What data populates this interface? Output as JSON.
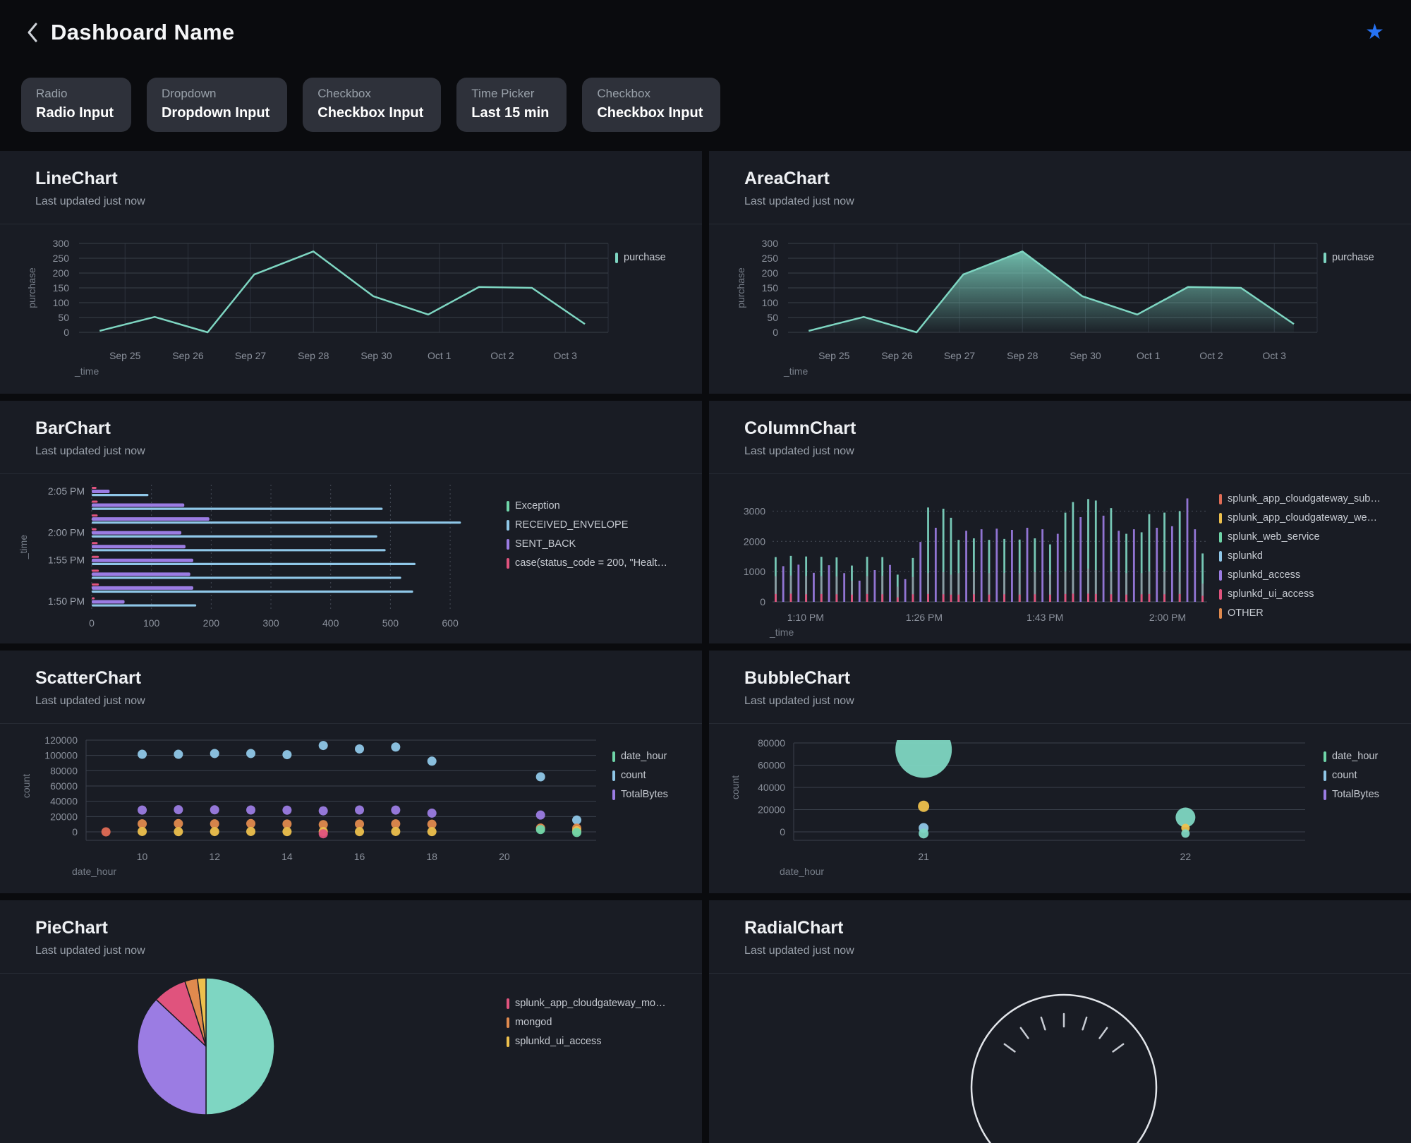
{
  "header": {
    "back_icon": "chevron-left",
    "title": "Dashboard Name",
    "star_icon": "star"
  },
  "inputs": [
    {
      "label": "Radio",
      "value": "Radio Input"
    },
    {
      "label": "Dropdown",
      "value": "Dropdown Input"
    },
    {
      "label": "Checkbox",
      "value": "Checkbox Input"
    },
    {
      "label": "Time Picker",
      "value": "Last 15 min"
    },
    {
      "label": "Checkbox",
      "value": "Checkbox Input"
    }
  ],
  "colors": {
    "teal": "#7ED6C2",
    "blue": "#8FC7E8",
    "purple": "#9B7CE3",
    "pink": "#E0537D",
    "orange": "#E08A4E",
    "redorange": "#E06C55",
    "yellow": "#EDC04D",
    "green": "#6FD5A8",
    "gray": "#8E94A0",
    "gauge": "#E2E5EA",
    "accent_star": "#2673F5"
  },
  "panels": [
    {
      "title": "LineChart",
      "subtitle": "Last updated just now"
    },
    {
      "title": "AreaChart",
      "subtitle": "Last updated just now"
    },
    {
      "title": "BarChart",
      "subtitle": "Last updated just now"
    },
    {
      "title": "ColumnChart",
      "subtitle": "Last updated just now"
    },
    {
      "title": "ScatterChart",
      "subtitle": "Last updated just now"
    },
    {
      "title": "BubbleChart",
      "subtitle": "Last updated just now"
    },
    {
      "title": "PieChart",
      "subtitle": "Last updated just now"
    },
    {
      "title": "RadialChart",
      "subtitle": "Last updated just now"
    }
  ],
  "chart_data": [
    {
      "id": "line",
      "type": "line",
      "title": "LineChart",
      "xlabel": "_time",
      "ylabel": "purchase",
      "ylim": [
        0,
        300
      ],
      "yticks": [
        0,
        50,
        100,
        150,
        200,
        250,
        300
      ],
      "xticks": [
        {
          "label": "Sep 25",
          "pos": 8.7
        },
        {
          "label": "Sep 26",
          "pos": 20.6
        },
        {
          "label": "Sep 27",
          "pos": 32.4
        },
        {
          "label": "Sep 28",
          "pos": 44.3
        },
        {
          "label": "Sep 30",
          "pos": 56.2
        },
        {
          "label": "Oct 1",
          "pos": 68.1
        },
        {
          "label": "Oct 2",
          "pos": 80
        },
        {
          "label": "Oct 3",
          "pos": 91.9
        }
      ],
      "points": [
        [
          3.9,
          5
        ],
        [
          14.3,
          52
        ],
        [
          24.3,
          0
        ],
        [
          33.1,
          195
        ],
        [
          44.3,
          273
        ],
        [
          55.6,
          122
        ],
        [
          66,
          60
        ],
        [
          75.6,
          153
        ],
        [
          85.6,
          150
        ],
        [
          95.6,
          28
        ]
      ],
      "series_color": "teal",
      "legend": [
        {
          "label": "purchase",
          "color": "teal"
        }
      ]
    },
    {
      "id": "area",
      "type": "area",
      "title": "AreaChart",
      "xlabel": "_time",
      "ylabel": "purchase",
      "ylim": [
        0,
        300
      ],
      "yticks": [
        0,
        50,
        100,
        150,
        200,
        250,
        300
      ],
      "xticks": [
        {
          "label": "Sep 25",
          "pos": 8.7
        },
        {
          "label": "Sep 26",
          "pos": 20.6
        },
        {
          "label": "Sep 27",
          "pos": 32.4
        },
        {
          "label": "Sep 28",
          "pos": 44.3
        },
        {
          "label": "Sep 30",
          "pos": 56.2
        },
        {
          "label": "Oct 1",
          "pos": 68.1
        },
        {
          "label": "Oct 2",
          "pos": 80
        },
        {
          "label": "Oct 3",
          "pos": 91.9
        }
      ],
      "points": [
        [
          3.9,
          5
        ],
        [
          14.3,
          52
        ],
        [
          24.3,
          0
        ],
        [
          33.1,
          195
        ],
        [
          44.3,
          273
        ],
        [
          55.6,
          122
        ],
        [
          66,
          60
        ],
        [
          75.6,
          153
        ],
        [
          85.6,
          150
        ],
        [
          95.6,
          28
        ]
      ],
      "series_color": "teal",
      "legend": [
        {
          "label": "purchase",
          "color": "teal"
        }
      ]
    },
    {
      "id": "bar",
      "type": "bar",
      "title": "BarChart",
      "ylabel": "_time",
      "xlim": [
        0,
        620
      ],
      "xticks": [
        0,
        100,
        200,
        300,
        400,
        500,
        600
      ],
      "groups": [
        {
          "label": "2:05 PM",
          "case": 8,
          "sent_back": 30,
          "received": 95
        },
        {
          "label": "",
          "case": 10,
          "sent_back": 155,
          "received": 487
        },
        {
          "label": "",
          "case": 10,
          "sent_back": 197,
          "received": 618
        },
        {
          "label": "2:00 PM",
          "case": 8,
          "sent_back": 150,
          "received": 478
        },
        {
          "label": "",
          "case": 10,
          "sent_back": 157,
          "received": 492
        },
        {
          "label": "1:55 PM",
          "case": 12,
          "sent_back": 170,
          "received": 542
        },
        {
          "label": "",
          "case": 12,
          "sent_back": 165,
          "received": 518
        },
        {
          "label": "",
          "case": 12,
          "sent_back": 170,
          "received": 538
        },
        {
          "label": "1:50 PM",
          "case": 5,
          "sent_back": 55,
          "received": 175
        }
      ],
      "legend": [
        {
          "label": "Exception",
          "color": "green"
        },
        {
          "label": "RECEIVED_ENVELOPE",
          "color": "blue"
        },
        {
          "label": "SENT_BACK",
          "color": "purple"
        },
        {
          "label": "case(status_code = 200, \"Healt…",
          "color": "pink"
        }
      ]
    },
    {
      "id": "column",
      "type": "column",
      "title": "ColumnChart",
      "xlabel": "_time",
      "ylim": [
        0,
        3500
      ],
      "yticks": [
        0,
        1000,
        2000,
        3000
      ],
      "xticks": [
        {
          "label": "1:10 PM",
          "pos": 7.6
        },
        {
          "label": "1:26 PM",
          "pos": 34.9
        },
        {
          "label": "1:43 PM",
          "pos": 62.7
        },
        {
          "label": "2:00 PM",
          "pos": 90.9
        }
      ],
      "columns": [
        [
          1480,
          0,
          850,
          260
        ],
        [
          1180,
          1,
          0,
          0
        ],
        [
          1520,
          0,
          870,
          270
        ],
        [
          1230,
          1,
          0,
          0
        ],
        [
          1500,
          0,
          860,
          250
        ],
        [
          960,
          1,
          0,
          0
        ],
        [
          1490,
          0,
          850,
          260
        ],
        [
          1210,
          1,
          0,
          0
        ],
        [
          1470,
          0,
          840,
          250
        ],
        [
          950,
          1,
          0,
          0
        ],
        [
          1200,
          0,
          700,
          240
        ],
        [
          700,
          1,
          0,
          0
        ],
        [
          1490,
          0,
          850,
          260
        ],
        [
          1050,
          1,
          0,
          0
        ],
        [
          1480,
          0,
          860,
          250
        ],
        [
          1220,
          1,
          0,
          0
        ],
        [
          900,
          0,
          500,
          150
        ],
        [
          750,
          1,
          0,
          0
        ],
        [
          1450,
          0,
          820,
          250
        ],
        [
          1980,
          1,
          0,
          0
        ],
        [
          3120,
          0,
          950,
          260
        ],
        [
          2450,
          1,
          0,
          0
        ],
        [
          3080,
          0,
          980,
          250
        ],
        [
          2780,
          0,
          900,
          240
        ],
        [
          2050,
          0,
          950,
          240
        ],
        [
          2350,
          1,
          0,
          0
        ],
        [
          2100,
          0,
          980,
          250
        ],
        [
          2400,
          1,
          0,
          0
        ],
        [
          2050,
          0,
          950,
          240
        ],
        [
          2420,
          1,
          0,
          0
        ],
        [
          2080,
          0,
          960,
          250
        ],
        [
          2380,
          1,
          0,
          0
        ],
        [
          2060,
          0,
          950,
          240
        ],
        [
          2450,
          1,
          0,
          0
        ],
        [
          2100,
          0,
          980,
          250
        ],
        [
          2400,
          1,
          0,
          0
        ],
        [
          1900,
          0,
          900,
          240
        ],
        [
          2250,
          1,
          0,
          0
        ],
        [
          2950,
          0,
          1000,
          260
        ],
        [
          3300,
          0,
          1050,
          270
        ],
        [
          2800,
          1,
          0,
          0
        ],
        [
          3400,
          0,
          1100,
          270
        ],
        [
          3350,
          0,
          1050,
          260
        ],
        [
          2850,
          1,
          0,
          0
        ],
        [
          3100,
          0,
          1000,
          250
        ],
        [
          2350,
          1,
          0,
          0
        ],
        [
          2250,
          0,
          950,
          240
        ],
        [
          2400,
          1,
          0,
          0
        ],
        [
          2300,
          0,
          950,
          250
        ],
        [
          2900,
          0,
          1000,
          260
        ],
        [
          2450,
          1,
          0,
          0
        ],
        [
          2950,
          0,
          1000,
          250
        ],
        [
          2500,
          1,
          0,
          0
        ],
        [
          3000,
          0,
          980,
          260
        ],
        [
          3420,
          1,
          0,
          0
        ],
        [
          2400,
          1,
          0,
          0
        ],
        [
          1600,
          0,
          600,
          200
        ]
      ],
      "column_series_colors": [
        "teal",
        "purple"
      ],
      "legend": [
        {
          "label": "splunk_app_cloudgateway_sub…",
          "color": "redorange"
        },
        {
          "label": "splunk_app_cloudgateway_we…",
          "color": "yellow"
        },
        {
          "label": "splunk_web_service",
          "color": "green"
        },
        {
          "label": "splunkd",
          "color": "blue"
        },
        {
          "label": "splunkd_access",
          "color": "purple"
        },
        {
          "label": "splunkd_ui_access",
          "color": "pink"
        },
        {
          "label": "OTHER",
          "color": "orange"
        }
      ]
    },
    {
      "id": "scatter",
      "type": "scatter",
      "title": "ScatterChart",
      "xlabel": "date_hour",
      "ylabel": "count",
      "ylim": [
        0,
        120000
      ],
      "yticks": [
        0,
        20000,
        40000,
        60000,
        80000,
        100000,
        120000
      ],
      "xticks": [
        {
          "label": "10",
          "pos": 11
        },
        {
          "label": "12",
          "pos": 25.2
        },
        {
          "label": "14",
          "pos": 39.4
        },
        {
          "label": "16",
          "pos": 53.6
        },
        {
          "label": "18",
          "pos": 67.8
        },
        {
          "label": "20",
          "pos": 82
        }
      ],
      "series": [
        {
          "color": "blue",
          "points": [
            [
              11,
              101500
            ],
            [
              18.1,
              101500
            ],
            [
              25.2,
              102500
            ],
            [
              32.3,
              102500
            ],
            [
              39.4,
              101000
            ],
            [
              46.5,
              113000
            ],
            [
              53.6,
              108500
            ],
            [
              60.7,
              111000
            ],
            [
              67.8,
              92500
            ],
            [
              89.1,
              72000
            ],
            [
              96.2,
              15500
            ]
          ]
        },
        {
          "color": "purple",
          "points": [
            [
              11,
              28500
            ],
            [
              18.1,
              29000
            ],
            [
              25.2,
              28800
            ],
            [
              32.3,
              28600
            ],
            [
              39.4,
              28400
            ],
            [
              46.5,
              27500
            ],
            [
              53.6,
              28600
            ],
            [
              60.7,
              28500
            ],
            [
              67.8,
              24500
            ],
            [
              89.1,
              22000
            ]
          ]
        },
        {
          "color": "orange",
          "points": [
            [
              11,
              10500
            ],
            [
              18.1,
              10800
            ],
            [
              25.2,
              10500
            ],
            [
              32.3,
              10800
            ],
            [
              39.4,
              10300
            ],
            [
              46.5,
              9500
            ],
            [
              53.6,
              10200
            ],
            [
              60.7,
              10500
            ],
            [
              67.8,
              10000
            ],
            [
              89.1,
              5000
            ],
            [
              96.2,
              4800
            ]
          ]
        },
        {
          "color": "yellow",
          "points": [
            [
              11,
              500
            ],
            [
              18.1,
              300
            ],
            [
              25.2,
              400
            ],
            [
              32.3,
              500
            ],
            [
              39.4,
              300
            ],
            [
              46.5,
              400
            ],
            [
              53.6,
              300
            ],
            [
              60.7,
              500
            ],
            [
              67.8,
              300
            ],
            [
              96.2,
              1500
            ]
          ]
        },
        {
          "color": "redorange",
          "points": [
            [
              3.9,
              0
            ]
          ]
        },
        {
          "color": "pink",
          "points": [
            [
              46.5,
              -2500
            ]
          ]
        },
        {
          "color": "green",
          "points": [
            [
              89.1,
              3000
            ],
            [
              96.2,
              -800
            ]
          ]
        }
      ],
      "legend": [
        {
          "label": "date_hour",
          "color": "green"
        },
        {
          "label": "count",
          "color": "blue"
        },
        {
          "label": "TotalBytes",
          "color": "purple"
        }
      ]
    },
    {
      "id": "bubble",
      "type": "bubble",
      "title": "BubbleChart",
      "xlabel": "date_hour",
      "ylabel": "count",
      "ylim": [
        0,
        80000
      ],
      "yticks": [
        0,
        20000,
        40000,
        60000,
        80000
      ],
      "xticks": [
        {
          "label": "21",
          "pos": 25.4
        },
        {
          "label": "22",
          "pos": 76.6
        }
      ],
      "points": [
        {
          "x": 25.4,
          "y": 74000,
          "r": 40,
          "color": "teal"
        },
        {
          "x": 25.4,
          "y": 23000,
          "r": 8,
          "color": "yellow"
        },
        {
          "x": 25.4,
          "y": 3500,
          "r": 7,
          "color": "blue"
        },
        {
          "x": 25.4,
          "y": -1500,
          "r": 7,
          "color": "teal"
        },
        {
          "x": 76.6,
          "y": 13000,
          "r": 14,
          "color": "teal"
        },
        {
          "x": 76.6,
          "y": 3500,
          "r": 6,
          "color": "yellow"
        },
        {
          "x": 76.6,
          "y": -1500,
          "r": 6,
          "color": "teal"
        }
      ],
      "legend": [
        {
          "label": "date_hour",
          "color": "green"
        },
        {
          "label": "count",
          "color": "blue"
        },
        {
          "label": "TotalBytes",
          "color": "purple"
        }
      ]
    },
    {
      "id": "pie",
      "type": "pie",
      "title": "PieChart",
      "slices": [
        {
          "color": "teal",
          "value": 50
        },
        {
          "color": "purple",
          "value": 37
        },
        {
          "color": "pink",
          "value": 8
        },
        {
          "color": "orange",
          "value": 3
        },
        {
          "color": "yellow",
          "value": 2
        }
      ],
      "legend": [
        {
          "label": "splunk_app_cloudgateway_mo…",
          "color": "pink"
        },
        {
          "label": "mongod",
          "color": "orange"
        },
        {
          "label": "splunkd_ui_access",
          "color": "yellow"
        }
      ]
    },
    {
      "id": "radial",
      "type": "radial",
      "title": "RadialChart",
      "tick_count": 7
    }
  ]
}
